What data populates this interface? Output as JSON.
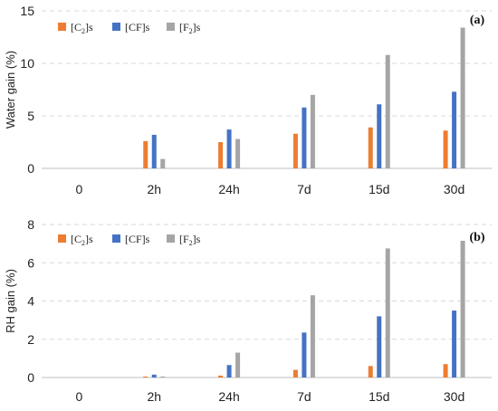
{
  "chart_data": [
    {
      "type": "bar",
      "panel_label": "(a)",
      "ylabel": "Water gain (%)",
      "xlabel": "",
      "ylim": [
        0,
        15
      ],
      "yticks": [
        0,
        5,
        10,
        15
      ],
      "categories": [
        "0",
        "2h",
        "24h",
        "7d",
        "15d",
        "30d"
      ],
      "legend_position": "top-left",
      "grid": "horizontal dashed",
      "series": [
        {
          "name": "[C2]s",
          "name_base": "[C",
          "name_sub": "2",
          "name_tail": "]s",
          "color": "#ED7D31",
          "values": [
            0,
            2.6,
            2.5,
            3.3,
            3.9,
            3.6
          ]
        },
        {
          "name": "[CF]s",
          "name_base": "[CF]s",
          "name_sub": "",
          "name_tail": "",
          "color": "#4472C4",
          "values": [
            0,
            3.2,
            3.7,
            5.8,
            6.1,
            7.3
          ]
        },
        {
          "name": "[F2]s",
          "name_base": "[F",
          "name_sub": "2",
          "name_tail": "]s",
          "color": "#A5A5A5",
          "values": [
            0,
            0.9,
            2.8,
            7.0,
            10.8,
            13.4
          ]
        }
      ]
    },
    {
      "type": "bar",
      "panel_label": "(b)",
      "ylabel": "RH gain (%)",
      "xlabel": "",
      "ylim": [
        0,
        8
      ],
      "yticks": [
        0,
        2,
        4,
        6,
        8
      ],
      "categories": [
        "0",
        "2h",
        "24h",
        "7d",
        "15d",
        "30d"
      ],
      "legend_position": "top-left",
      "grid": "horizontal dashed",
      "series": [
        {
          "name": "[C2]s",
          "name_base": "[C",
          "name_sub": "2",
          "name_tail": "]s",
          "color": "#ED7D31",
          "values": [
            0,
            0.05,
            0.1,
            0.4,
            0.6,
            0.7
          ]
        },
        {
          "name": "[CF]s",
          "name_base": "[CF]s",
          "name_sub": "",
          "name_tail": "",
          "color": "#4472C4",
          "values": [
            0,
            0.15,
            0.65,
            2.35,
            3.2,
            3.5
          ]
        },
        {
          "name": "[F2]s",
          "name_base": "[F",
          "name_sub": "2",
          "name_tail": "]s",
          "color": "#A5A5A5",
          "values": [
            0,
            0.05,
            1.3,
            4.3,
            6.75,
            7.15
          ]
        }
      ]
    }
  ]
}
